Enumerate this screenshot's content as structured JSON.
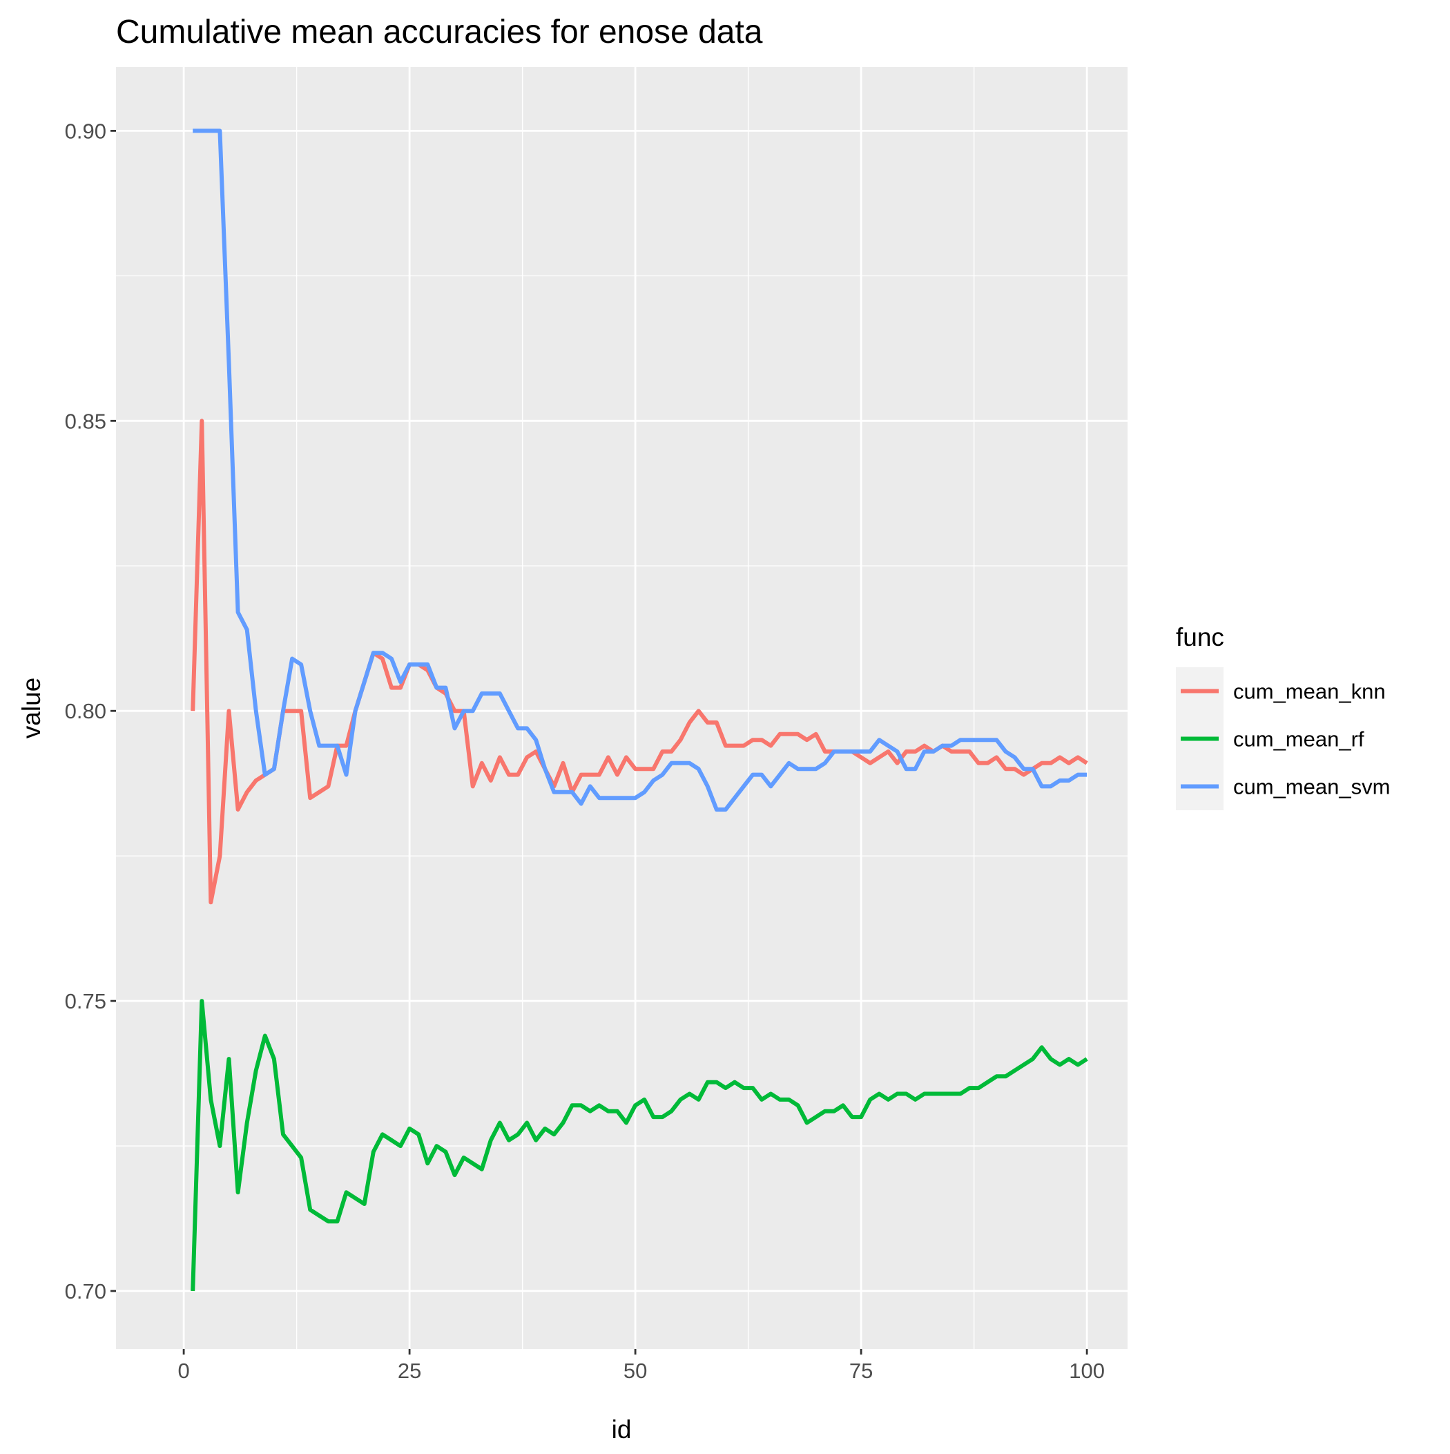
{
  "chart_data": {
    "type": "line",
    "title": "Cumulative mean accuracies for enose data",
    "xlabel": "id",
    "ylabel": "value",
    "xlim": [
      -7.5,
      104.5
    ],
    "ylim": [
      0.69,
      0.911
    ],
    "x_ticks": [
      0,
      25,
      50,
      75,
      100
    ],
    "x_tick_labels": [
      "0",
      "25",
      "50",
      "75",
      "100"
    ],
    "y_ticks": [
      0.7,
      0.75,
      0.8,
      0.85,
      0.9
    ],
    "y_tick_labels": [
      "0.70",
      "0.75",
      "0.80",
      "0.85",
      "0.90"
    ],
    "grid": true,
    "legend_position": "right",
    "legend_title": "func",
    "series": [
      {
        "name": "cum_mean_knn",
        "color": "#F8766D",
        "values": [
          0.8,
          0.85,
          0.767,
          0.775,
          0.8,
          0.783,
          0.786,
          0.788,
          0.789,
          0.79,
          0.8,
          0.8,
          0.8,
          0.785,
          0.786,
          0.787,
          0.794,
          0.794,
          0.8,
          0.805,
          0.81,
          0.809,
          0.804,
          0.804,
          0.808,
          0.808,
          0.807,
          0.804,
          0.803,
          0.8,
          0.8,
          0.787,
          0.791,
          0.788,
          0.792,
          0.789,
          0.789,
          0.792,
          0.793,
          0.79,
          0.787,
          0.791,
          0.786,
          0.789,
          0.789,
          0.789,
          0.792,
          0.789,
          0.792,
          0.79,
          0.79,
          0.79,
          0.793,
          0.793,
          0.795,
          0.798,
          0.8,
          0.798,
          0.798,
          0.794,
          0.794,
          0.794,
          0.795,
          0.795,
          0.794,
          0.796,
          0.796,
          0.796,
          0.795,
          0.796,
          0.793,
          0.793,
          0.793,
          0.793,
          0.792,
          0.791,
          0.792,
          0.793,
          0.791,
          0.793,
          0.793,
          0.794,
          0.793,
          0.794,
          0.793,
          0.793,
          0.793,
          0.791,
          0.791,
          0.792,
          0.79,
          0.79,
          0.789,
          0.79,
          0.791,
          0.791,
          0.792,
          0.791,
          0.792,
          0.791
        ]
      },
      {
        "name": "cum_mean_rf",
        "color": "#00BA38",
        "values": [
          0.7,
          0.75,
          0.733,
          0.725,
          0.74,
          0.717,
          0.729,
          0.738,
          0.744,
          0.74,
          0.727,
          0.725,
          0.723,
          0.714,
          0.713,
          0.712,
          0.712,
          0.717,
          0.716,
          0.715,
          0.724,
          0.727,
          0.726,
          0.725,
          0.728,
          0.727,
          0.722,
          0.725,
          0.724,
          0.72,
          0.723,
          0.722,
          0.721,
          0.726,
          0.729,
          0.726,
          0.727,
          0.729,
          0.726,
          0.728,
          0.727,
          0.729,
          0.732,
          0.732,
          0.731,
          0.732,
          0.731,
          0.731,
          0.729,
          0.732,
          0.733,
          0.73,
          0.73,
          0.731,
          0.733,
          0.734,
          0.733,
          0.736,
          0.736,
          0.735,
          0.736,
          0.735,
          0.735,
          0.733,
          0.734,
          0.733,
          0.733,
          0.732,
          0.729,
          0.73,
          0.731,
          0.731,
          0.732,
          0.73,
          0.73,
          0.733,
          0.734,
          0.733,
          0.734,
          0.734,
          0.733,
          0.734,
          0.734,
          0.734,
          0.734,
          0.734,
          0.735,
          0.735,
          0.736,
          0.737,
          0.737,
          0.738,
          0.739,
          0.74,
          0.742,
          0.74,
          0.739,
          0.74,
          0.739,
          0.74
        ]
      },
      {
        "name": "cum_mean_svm",
        "color": "#619CFF",
        "values": [
          0.9,
          0.9,
          0.9,
          0.9,
          0.86,
          0.817,
          0.814,
          0.8,
          0.789,
          0.79,
          0.8,
          0.809,
          0.808,
          0.8,
          0.794,
          0.794,
          0.794,
          0.789,
          0.8,
          0.805,
          0.81,
          0.81,
          0.809,
          0.805,
          0.808,
          0.808,
          0.808,
          0.804,
          0.804,
          0.797,
          0.8,
          0.8,
          0.803,
          0.803,
          0.803,
          0.8,
          0.797,
          0.797,
          0.795,
          0.79,
          0.786,
          0.786,
          0.786,
          0.784,
          0.787,
          0.785,
          0.785,
          0.785,
          0.785,
          0.785,
          0.786,
          0.788,
          0.789,
          0.791,
          0.791,
          0.791,
          0.79,
          0.787,
          0.783,
          0.783,
          0.785,
          0.787,
          0.789,
          0.789,
          0.787,
          0.789,
          0.791,
          0.79,
          0.79,
          0.79,
          0.791,
          0.793,
          0.793,
          0.793,
          0.793,
          0.793,
          0.795,
          0.794,
          0.793,
          0.79,
          0.79,
          0.793,
          0.793,
          0.794,
          0.794,
          0.795,
          0.795,
          0.795,
          0.795,
          0.795,
          0.793,
          0.792,
          0.79,
          0.79,
          0.787,
          0.787,
          0.788,
          0.788,
          0.789,
          0.789
        ]
      }
    ]
  }
}
